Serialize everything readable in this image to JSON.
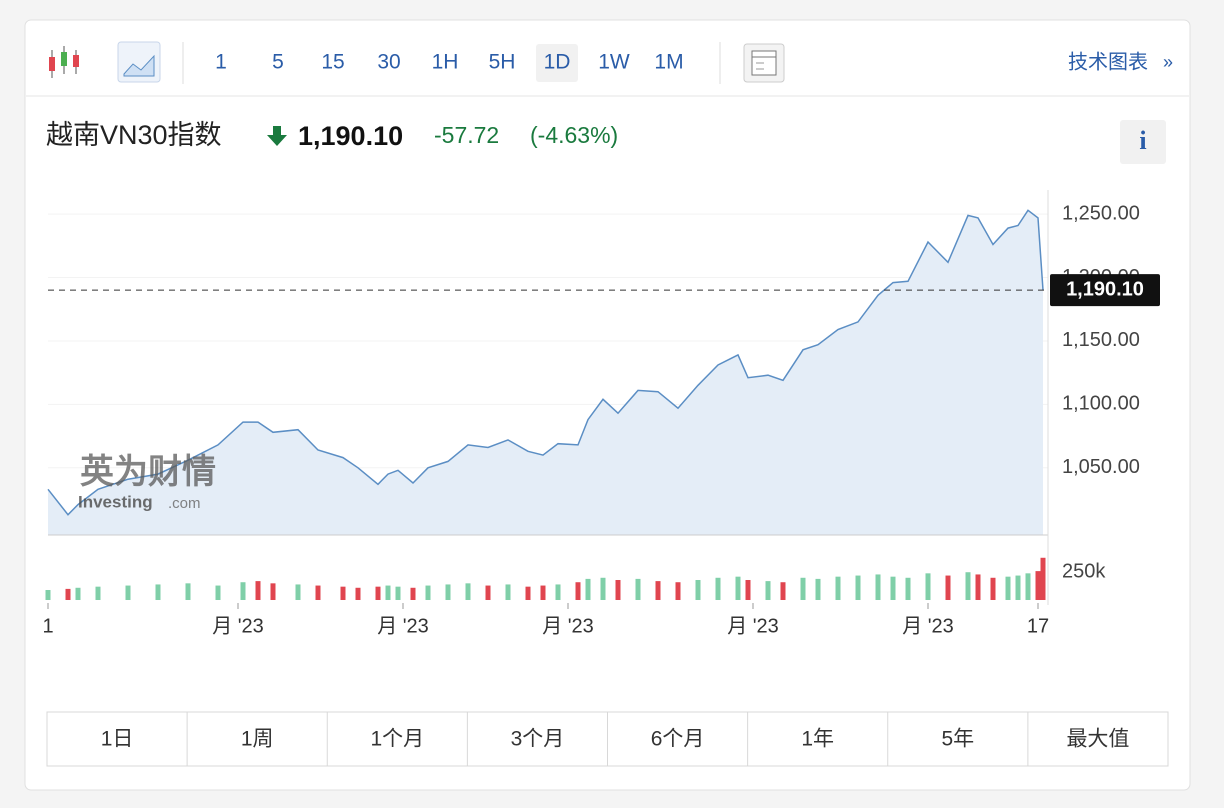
{
  "toolbar": {
    "intervals": [
      "1",
      "5",
      "15",
      "30",
      "1H",
      "5H",
      "1D",
      "1W",
      "1M"
    ],
    "active": "1D",
    "link": "技术图表",
    "link_arrow": "»"
  },
  "header": {
    "title": "越南VN30指数",
    "price": "1,190.10",
    "change": "-57.72",
    "change_pct": "(-4.63%)",
    "info": "i"
  },
  "watermark": {
    "cn": "英为财情",
    "en": "Investing",
    "en_suffix": ".com"
  },
  "chart_data": [
    {
      "type": "area",
      "color": "#5b8ec4",
      "fill": "#e4edf7",
      "x": [
        0,
        4,
        6,
        10,
        16,
        22,
        28,
        34,
        39,
        42,
        45,
        50,
        54,
        59,
        62,
        66,
        68,
        70,
        73,
        76,
        80,
        84,
        88,
        92,
        96,
        99,
        102,
        106,
        108,
        111,
        114,
        118,
        122,
        126,
        130,
        134,
        138,
        140,
        144,
        147,
        151,
        154,
        158,
        162,
        166,
        169,
        172,
        176,
        180,
        184,
        186,
        189,
        192,
        194,
        196,
        198,
        199
      ],
      "values": [
        1033,
        1013,
        1021,
        1033,
        1041,
        1045,
        1056,
        1068,
        1086,
        1086,
        1078,
        1080,
        1064,
        1058,
        1050,
        1037,
        1045,
        1048,
        1038,
        1050,
        1055,
        1068,
        1066,
        1072,
        1063,
        1060,
        1069,
        1068,
        1088,
        1104,
        1093,
        1111,
        1110,
        1097,
        1115,
        1131,
        1139,
        1121,
        1123,
        1119,
        1143,
        1147,
        1159,
        1165,
        1186,
        1196,
        1197,
        1228,
        1212,
        1249,
        1247,
        1226,
        1239,
        1241,
        1253,
        1247,
        1190.1
      ],
      "xlim": [
        0,
        200
      ],
      "xticks": [
        {
          "value": 0,
          "label": "1"
        },
        {
          "value": 38,
          "label": "月 '23"
        },
        {
          "value": 71,
          "label": "月 '23"
        },
        {
          "value": 104,
          "label": "月 '23"
        },
        {
          "value": 141,
          "label": "月 '23"
        },
        {
          "value": 176,
          "label": "月 '23"
        },
        {
          "value": 198,
          "label": "17"
        }
      ],
      "ylim": [
        997,
        1269
      ],
      "yticks": [
        {
          "value": 1050,
          "label": "1,050.00"
        },
        {
          "value": 1100,
          "label": "1,100.00"
        },
        {
          "value": 1150,
          "label": "1,150.00"
        },
        {
          "value": 1200,
          "label": "1,200.00"
        },
        {
          "value": 1250,
          "label": "1,250.00"
        }
      ],
      "grid": true
    },
    {
      "type": "bar",
      "x": [
        0,
        4,
        6,
        10,
        16,
        22,
        28,
        34,
        39,
        42,
        45,
        50,
        54,
        59,
        62,
        66,
        68,
        70,
        73,
        76,
        80,
        84,
        88,
        92,
        96,
        99,
        102,
        106,
        108,
        111,
        114,
        118,
        122,
        126,
        130,
        134,
        138,
        140,
        144,
        147,
        151,
        154,
        158,
        162,
        166,
        169,
        172,
        176,
        180,
        184,
        186,
        189,
        192,
        194,
        196,
        198,
        199
      ],
      "values": [
        90000,
        100000,
        110000,
        120000,
        130000,
        140000,
        150000,
        130000,
        160000,
        170000,
        150000,
        140000,
        130000,
        120000,
        110000,
        120000,
        130000,
        120000,
        110000,
        130000,
        140000,
        150000,
        130000,
        140000,
        120000,
        130000,
        140000,
        160000,
        190000,
        200000,
        180000,
        190000,
        170000,
        160000,
        180000,
        200000,
        210000,
        180000,
        170000,
        160000,
        200000,
        190000,
        210000,
        220000,
        230000,
        210000,
        200000,
        240000,
        220000,
        250000,
        230000,
        200000,
        210000,
        220000,
        240000,
        260000,
        380000
      ],
      "colors": [
        "#7fcfa8",
        "#e0454f",
        "#7fcfa8",
        "#7fcfa8",
        "#7fcfa8",
        "#7fcfa8",
        "#7fcfa8",
        "#7fcfa8",
        "#7fcfa8",
        "#e0454f",
        "#e0454f",
        "#7fcfa8",
        "#e0454f",
        "#e0454f",
        "#e0454f",
        "#e0454f",
        "#7fcfa8",
        "#7fcfa8",
        "#e0454f",
        "#7fcfa8",
        "#7fcfa8",
        "#7fcfa8",
        "#e0454f",
        "#7fcfa8",
        "#e0454f",
        "#e0454f",
        "#7fcfa8",
        "#e0454f",
        "#7fcfa8",
        "#7fcfa8",
        "#e0454f",
        "#7fcfa8",
        "#e0454f",
        "#e0454f",
        "#7fcfa8",
        "#7fcfa8",
        "#7fcfa8",
        "#e0454f",
        "#7fcfa8",
        "#e0454f",
        "#7fcfa8",
        "#7fcfa8",
        "#7fcfa8",
        "#7fcfa8",
        "#7fcfa8",
        "#7fcfa8",
        "#7fcfa8",
        "#7fcfa8",
        "#e0454f",
        "#7fcfa8",
        "#e0454f",
        "#e0454f",
        "#7fcfa8",
        "#7fcfa8",
        "#7fcfa8",
        "#e0454f",
        "#e0454f"
      ],
      "xlim": [
        0,
        200
      ],
      "ylim": [
        0,
        540000
      ],
      "yticks": [
        {
          "value": 250000,
          "label": "250k"
        }
      ]
    }
  ],
  "range_buttons": [
    "1日",
    "1周",
    "1个月",
    "3个月",
    "6个月",
    "1年",
    "5年",
    "最大值"
  ]
}
